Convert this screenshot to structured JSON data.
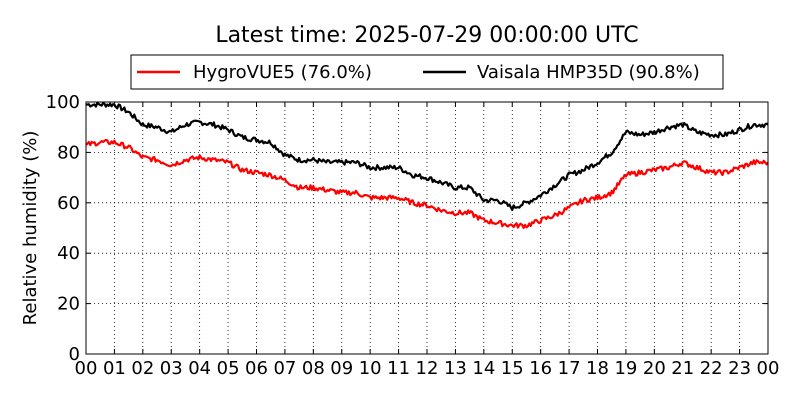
{
  "chart_data": {
    "type": "line",
    "title": "Latest time: 2025-07-29 00:00:00 UTC",
    "xlabel": "",
    "ylabel": "Relative humidity (%)",
    "xlim": [
      0,
      24
    ],
    "ylim": [
      0,
      100
    ],
    "x_ticks": [
      "00",
      "01",
      "02",
      "03",
      "04",
      "05",
      "06",
      "07",
      "08",
      "09",
      "10",
      "11",
      "12",
      "13",
      "14",
      "15",
      "16",
      "17",
      "18",
      "19",
      "20",
      "21",
      "22",
      "23",
      "00"
    ],
    "y_ticks": [
      0,
      20,
      40,
      60,
      80,
      100
    ],
    "grid": true,
    "legend_position": "top",
    "x": [
      0,
      0.5,
      1,
      1.5,
      2,
      2.5,
      3,
      3.5,
      4,
      4.5,
      5,
      5.5,
      6,
      6.5,
      7,
      7.5,
      8,
      8.5,
      9,
      9.5,
      10,
      10.5,
      11,
      11.5,
      12,
      12.5,
      13,
      13.5,
      14,
      14.5,
      15,
      15.5,
      16,
      16.5,
      17,
      17.5,
      18,
      18.5,
      19,
      19.5,
      20,
      20.5,
      21,
      21.5,
      22,
      22.5,
      23,
      23.5,
      24
    ],
    "series": [
      {
        "name": "HygroVUE5 (76.0%)",
        "color": "#ff0000",
        "values": [
          83,
          84,
          84,
          82,
          78,
          77,
          75,
          77,
          78,
          77,
          76,
          73,
          72,
          71,
          69,
          66,
          66,
          65,
          64,
          64,
          62,
          62,
          62,
          60,
          59,
          57,
          56,
          56,
          53,
          52,
          51,
          51,
          53,
          55,
          58,
          61,
          62,
          64,
          71,
          72,
          73,
          74,
          76,
          74,
          72,
          72,
          74,
          76,
          76
        ]
      },
      {
        "name": "Vaisala HMP35D (90.8%)",
        "color": "#000000",
        "values": [
          99,
          99,
          99,
          96,
          91,
          90,
          88,
          91,
          92,
          91,
          89,
          86,
          85,
          84,
          79,
          77,
          77,
          76,
          76,
          76,
          74,
          74,
          74,
          71,
          70,
          68,
          66,
          66,
          61,
          61,
          58,
          60,
          63,
          67,
          71,
          73,
          76,
          80,
          88,
          87,
          88,
          90,
          91,
          88,
          87,
          87,
          89,
          91,
          91
        ]
      }
    ]
  }
}
